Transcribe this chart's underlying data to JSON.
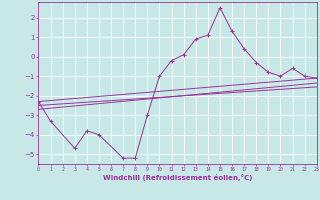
{
  "background_color": "#c8e8e8",
  "grid_color": "#ffffff",
  "line_color": "#993399",
  "xlabel": "Windchill (Refroidissement éolien,°C)",
  "xlim": [
    0,
    23
  ],
  "ylim": [
    -5.5,
    2.8
  ],
  "yticks": [
    2,
    1,
    0,
    -1,
    -2,
    -3,
    -4,
    -5
  ],
  "xticks": [
    0,
    1,
    2,
    3,
    4,
    5,
    6,
    7,
    8,
    9,
    10,
    11,
    12,
    13,
    14,
    15,
    16,
    17,
    18,
    19,
    20,
    21,
    22,
    23
  ],
  "series": [
    [
      0,
      -2.3
    ],
    [
      1,
      -3.3
    ],
    [
      3,
      -4.7
    ],
    [
      4,
      -3.8
    ],
    [
      5,
      -4.0
    ],
    [
      7,
      -5.2
    ],
    [
      8,
      -5.2
    ],
    [
      9,
      -3.0
    ],
    [
      10,
      -1.0
    ],
    [
      11,
      -0.2
    ],
    [
      12,
      0.1
    ],
    [
      13,
      0.9
    ],
    [
      14,
      1.1
    ],
    [
      15,
      2.5
    ],
    [
      16,
      1.3
    ],
    [
      17,
      0.4
    ],
    [
      18,
      -0.3
    ],
    [
      19,
      -0.8
    ],
    [
      20,
      -1.0
    ],
    [
      21,
      -0.6
    ],
    [
      22,
      -1.0
    ],
    [
      23,
      -1.1
    ]
  ],
  "line2": [
    [
      0,
      -2.3
    ],
    [
      23,
      -1.1
    ]
  ],
  "line3": [
    [
      0,
      -2.7
    ],
    [
      23,
      -1.35
    ]
  ],
  "line4": [
    [
      0,
      -2.5
    ],
    [
      23,
      -1.55
    ]
  ]
}
